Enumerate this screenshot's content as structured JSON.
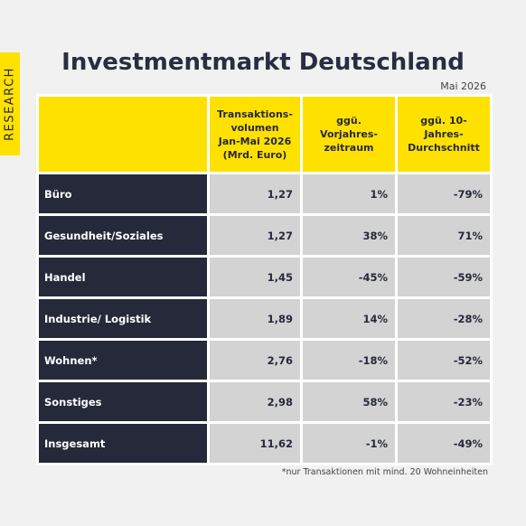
{
  "side_label": "RESEARCH",
  "header": {
    "title": "Investmentmarkt Deutschland",
    "date": "Mai 2026"
  },
  "table": {
    "columns": [
      "",
      "Transaktions-\nvolumen\nJan-Mai 2026\n(Mrd. Euro)",
      "ggü. Vorjahres-\nzeitraum",
      "ggü. 10-Jahres-\nDurchschnitt"
    ],
    "rows": [
      [
        "Büro",
        "1,27",
        "1%",
        "-79%"
      ],
      [
        "Gesundheit/Soziales",
        "1,27",
        "38%",
        "71%"
      ],
      [
        "Handel",
        "1,45",
        "-45%",
        "-59%"
      ],
      [
        "Industrie/ Logistik",
        "1,89",
        "14%",
        "-28%"
      ],
      [
        "Wohnen*",
        "2,76",
        "-18%",
        "-52%"
      ],
      [
        "Sonstiges",
        "2,98",
        "58%",
        "-23%"
      ],
      [
        "Insgesamt",
        "11,62",
        "-1%",
        "-49%"
      ]
    ]
  },
  "footnote": "*nur Transaktionen mit mind. 20 Wohneinheiten"
}
